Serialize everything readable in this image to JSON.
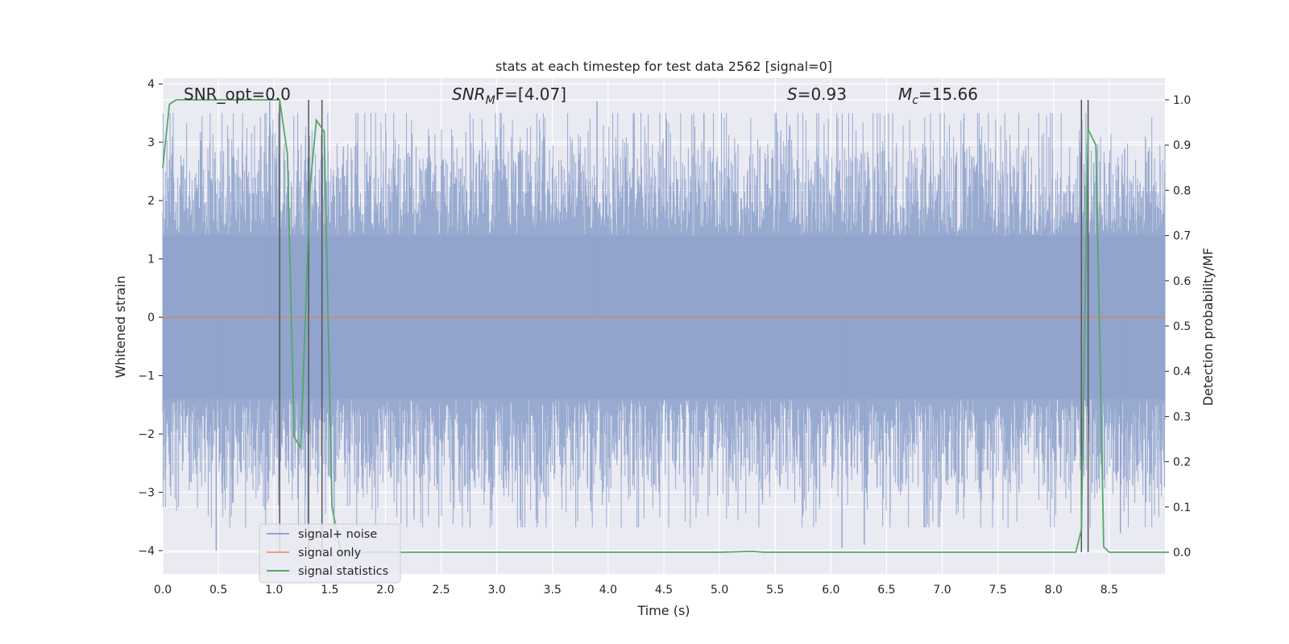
{
  "chart_data": {
    "type": "line",
    "title": "stats at each timestep for test data 2562 [signal=0]",
    "xlabel": "Time (s)",
    "ylabel": "Whitened strain",
    "ylabel_right": "Detection probability/MF",
    "xlim": [
      0.0,
      9.0
    ],
    "ylim": [
      -4.4,
      4.1
    ],
    "ylim_right": [
      -0.048,
      1.048
    ],
    "xticks": [
      "0.0",
      "0.5",
      "1.0",
      "1.5",
      "2.0",
      "2.5",
      "3.0",
      "3.5",
      "4.0",
      "4.5",
      "5.0",
      "5.5",
      "6.0",
      "6.5",
      "7.0",
      "7.5",
      "8.0",
      "8.5"
    ],
    "yticks": [
      "4",
      "3",
      "2",
      "1",
      "0",
      "−1",
      "−2",
      "−3",
      "−4"
    ],
    "yticks_right": [
      "1.0",
      "0.9",
      "0.8",
      "0.7",
      "0.6",
      "0.5",
      "0.4",
      "0.3",
      "0.2",
      "0.1",
      "0.0"
    ],
    "grid": true,
    "legend_position": "lower-left",
    "annotations": {
      "snr_opt": "SNR_opt=0.0",
      "snr_mf_main": "SNR",
      "snr_mf_sub": "M",
      "snr_mf_rest": "F=[4.07]",
      "s_main": "S",
      "s_rest": "=0.93",
      "mc_main": "M",
      "mc_sub": "c",
      "mc_rest": "=15.66"
    },
    "series": [
      {
        "name": "signal+ noise",
        "color": "#8fa3cc",
        "axis": "left",
        "description_style": "dense band",
        "band_inner": [
          -1.4,
          1.4
        ],
        "band_outer": [
          -3.0,
          3.0
        ],
        "extreme_points": [
          [
            0.48,
            -4.0
          ],
          [
            0.96,
            3.7
          ],
          [
            3.9,
            3.7
          ],
          [
            6.1,
            -3.95
          ],
          [
            6.3,
            -3.9
          ],
          [
            8.6,
            -3.7
          ]
        ]
      },
      {
        "name": "signal only",
        "color": "#dd8452",
        "axis": "left",
        "x": [
          0.0,
          9.0
        ],
        "y": [
          0.0,
          0.0
        ]
      },
      {
        "name": "signal statistics",
        "color": "#55a868",
        "axis": "right",
        "x": [
          0.0,
          0.06,
          0.12,
          0.3,
          0.6,
          0.9,
          1.05,
          1.12,
          1.18,
          1.24,
          1.32,
          1.38,
          1.45,
          1.52,
          1.6,
          2.0,
          3.0,
          4.0,
          5.0,
          5.3,
          5.4,
          6.0,
          7.0,
          8.0,
          8.2,
          8.25,
          8.31,
          8.38,
          8.45,
          8.5,
          9.0
        ],
        "y": [
          0.85,
          0.99,
          1.0,
          1.0,
          1.0,
          1.0,
          1.0,
          0.88,
          0.255,
          0.23,
          0.8,
          0.955,
          0.93,
          0.1,
          0.0,
          0.0,
          0.0,
          0.0,
          0.0,
          0.002,
          0.0,
          0.0,
          0.0,
          0.0,
          0.0,
          0.05,
          0.935,
          0.9,
          0.012,
          0.0,
          0.0
        ]
      }
    ],
    "vlines": [
      1.05,
      1.31,
      1.43,
      8.25,
      8.31
    ]
  }
}
